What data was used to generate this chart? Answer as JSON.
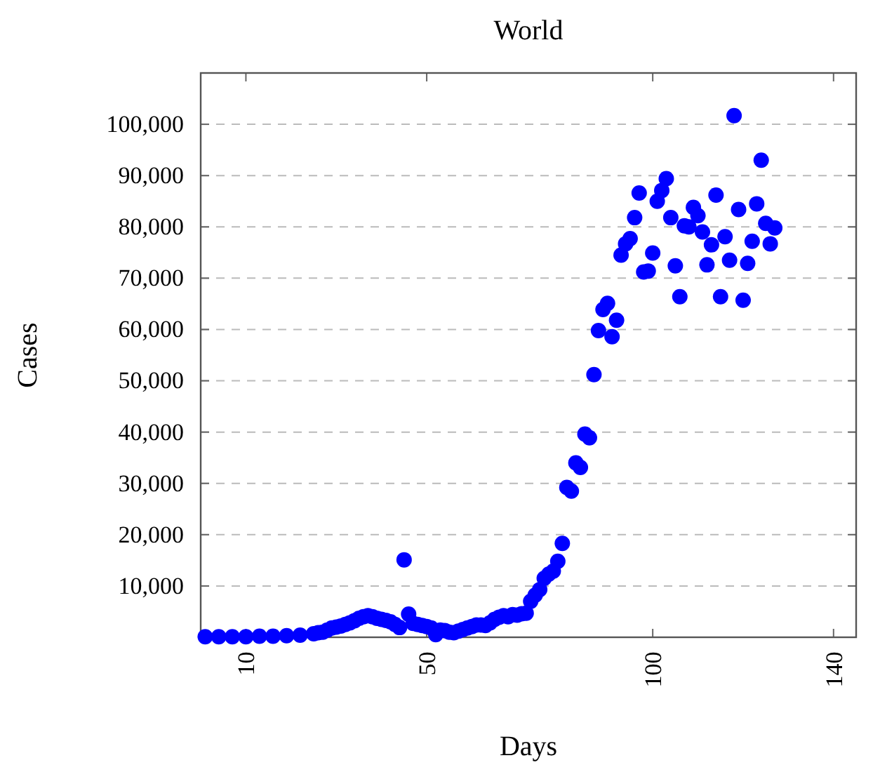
{
  "chart_data": {
    "type": "scatter",
    "title": "World",
    "xlabel": "Days",
    "ylabel": "Cases",
    "xlim": [
      0,
      145
    ],
    "xticks": [
      10,
      50,
      100,
      140
    ],
    "ylim": [
      0,
      110000
    ],
    "yticks": [
      {
        "value": 10000,
        "label": "10,000"
      },
      {
        "value": 20000,
        "label": "20,000"
      },
      {
        "value": 30000,
        "label": "30,000"
      },
      {
        "value": 40000,
        "label": "40,000"
      },
      {
        "value": 50000,
        "label": "50,000"
      },
      {
        "value": 60000,
        "label": "60,000"
      },
      {
        "value": 70000,
        "label": "70,000"
      },
      {
        "value": 80000,
        "label": "80,000"
      },
      {
        "value": 90000,
        "label": "90,000"
      },
      {
        "value": 100000,
        "label": "100,000"
      }
    ],
    "grid": "y",
    "marker": "circle",
    "series": [
      {
        "color": "#0000ff",
        "x": [
          1,
          4,
          7,
          10,
          13,
          16,
          19,
          22,
          25,
          26,
          27,
          28,
          29,
          30,
          31,
          32,
          33,
          34,
          35,
          36,
          37,
          38,
          39,
          40,
          41,
          42,
          43,
          44,
          45,
          46,
          47,
          48,
          49,
          50,
          51,
          52,
          53,
          54,
          55,
          56,
          57,
          58,
          59,
          60,
          61,
          62,
          63,
          64,
          65,
          66,
          67,
          68,
          69,
          70,
          71,
          72,
          73,
          74,
          75,
          76,
          77,
          78,
          79,
          80,
          81,
          82,
          83,
          84,
          85,
          86,
          87,
          88,
          89,
          90,
          91,
          92,
          93,
          94,
          95,
          96,
          97,
          98,
          99,
          100,
          101,
          102,
          103,
          104,
          105,
          106,
          107,
          108,
          109,
          110,
          111,
          112,
          113,
          114,
          115,
          116,
          117,
          118,
          119,
          120,
          121,
          122,
          123,
          124,
          125,
          126,
          127
        ],
        "values": [
          100,
          100,
          100,
          100,
          200,
          200,
          300,
          400,
          700,
          900,
          1000,
          1400,
          1800,
          2000,
          2200,
          2500,
          2800,
          3200,
          3700,
          4000,
          4200,
          4000,
          3700,
          3500,
          3300,
          3000,
          2500,
          1900,
          15100,
          4500,
          2700,
          2500,
          2300,
          2100,
          1800,
          500,
          1400,
          1300,
          1000,
          900,
          1200,
          1500,
          1800,
          2100,
          2400,
          2400,
          2300,
          2800,
          3500,
          3900,
          4200,
          4000,
          4400,
          4300,
          4600,
          4700,
          7000,
          8200,
          9300,
          11500,
          12300,
          12900,
          14800,
          18300,
          29200,
          28500,
          34000,
          33100,
          39600,
          38900,
          51200,
          59800,
          63900,
          65100,
          58600,
          61800,
          74500,
          76700,
          77700,
          81800,
          86600,
          71200,
          71400,
          74900,
          85000,
          87100,
          89400,
          81800,
          72400,
          66400,
          80200,
          80000,
          83800,
          82200,
          79000,
          72600,
          76500,
          86200,
          66400,
          78100,
          73500,
          101700,
          83400,
          65700,
          72900,
          77200,
          84500,
          93000,
          80700,
          76700,
          79800
        ]
      }
    ]
  }
}
